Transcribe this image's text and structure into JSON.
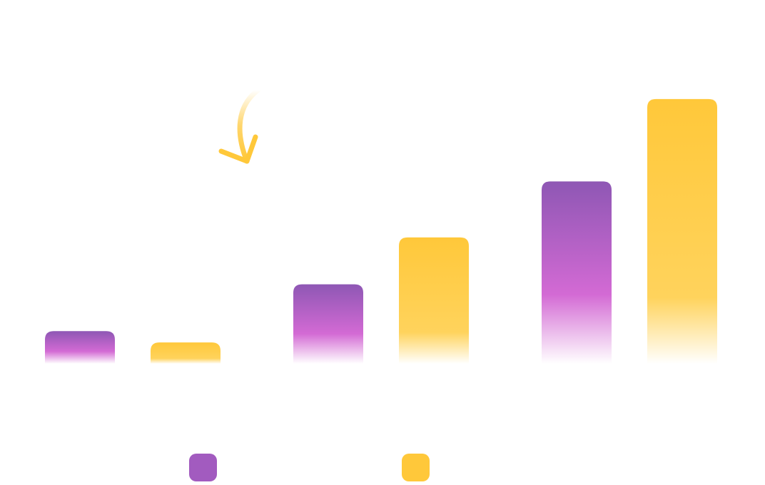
{
  "chart_data": {
    "type": "bar",
    "categories": [
      "",
      "",
      ""
    ],
    "series": [
      {
        "color": "#9b59b6",
        "values": [
          46,
          112,
          257
        ]
      },
      {
        "color": "#ffc83a",
        "values": [
          30,
          178,
          373
        ]
      }
    ],
    "ylim": [
      0,
      390
    ],
    "grid": true,
    "legend": {
      "position": "bottom"
    },
    "annotation": {
      "type": "curved-arrow",
      "color": "#ffc83a",
      "icon": "arrow-down-icon"
    }
  }
}
